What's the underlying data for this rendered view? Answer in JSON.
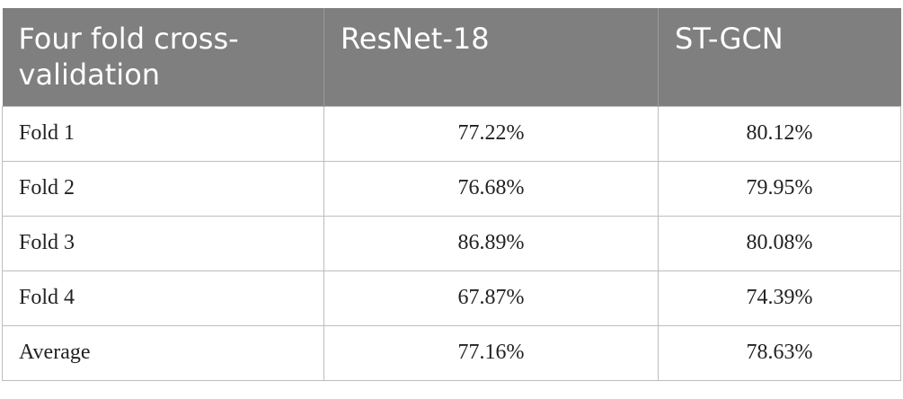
{
  "table": {
    "headers": [
      "Four fold cross-validation",
      "ResNet-18",
      "ST-GCN"
    ],
    "rows": [
      {
        "label": "Fold 1",
        "resnet18": "77.22%",
        "stgcn": "80.12%"
      },
      {
        "label": "Fold 2",
        "resnet18": "76.68%",
        "stgcn": "79.95%"
      },
      {
        "label": "Fold 3",
        "resnet18": "86.89%",
        "stgcn": "80.08%"
      },
      {
        "label": "Fold 4",
        "resnet18": "67.87%",
        "stgcn": "74.39%"
      },
      {
        "label": "Average",
        "resnet18": "77.16%",
        "stgcn": "78.63%"
      }
    ]
  },
  "chart_data": {
    "type": "table",
    "columns": [
      "Four fold cross-validation",
      "ResNet-18",
      "ST-GCN"
    ],
    "rows": [
      [
        "Fold 1",
        "77.22%",
        "80.12%"
      ],
      [
        "Fold 2",
        "76.68%",
        "79.95%"
      ],
      [
        "Fold 3",
        "86.89%",
        "80.08%"
      ],
      [
        "Fold 4",
        "67.87%",
        "74.39%"
      ],
      [
        "Average",
        "77.16%",
        "78.63%"
      ]
    ]
  },
  "colors": {
    "header_bg": "#7f7f7f",
    "header_text": "#ffffff",
    "border": "#bdbdbd"
  }
}
